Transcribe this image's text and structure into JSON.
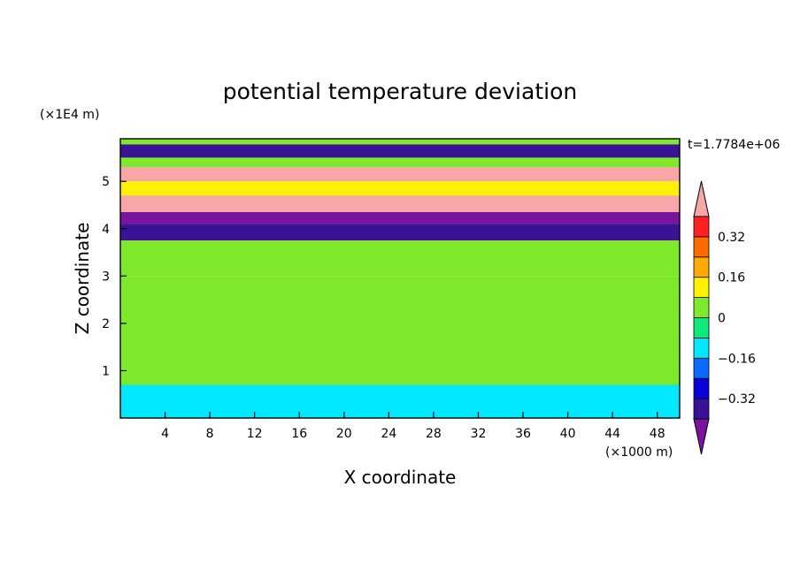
{
  "chart_data": {
    "type": "heatmap",
    "title": "potential temperature deviation",
    "time_label": "t=1.7784e+06",
    "xlabel": "X coordinate",
    "ylabel": "Z coordinate",
    "x_unit": "(×1000 m)",
    "y_unit": "(×1E4 m)",
    "xlim": [
      0,
      50
    ],
    "ylim": [
      0,
      5.9
    ],
    "x_ticks": [
      4,
      8,
      12,
      16,
      20,
      24,
      28,
      32,
      36,
      40,
      44,
      48
    ],
    "y_ticks": [
      1,
      2,
      3,
      4,
      5
    ],
    "colorbar": {
      "levels": [
        -0.4,
        -0.32,
        -0.24,
        -0.16,
        -0.08,
        0,
        0.08,
        0.16,
        0.24,
        0.32,
        0.4
      ],
      "labels": [
        "0.32",
        "0.16",
        "0",
        "−0.16",
        "−0.32"
      ],
      "label_values": [
        0.32,
        0.16,
        0,
        -0.16,
        -0.32
      ],
      "colors": [
        "#7a14a0",
        "#3a1296",
        "#0a00d8",
        "#0a6aff",
        "#00e8ff",
        "#11e87a",
        "#7ee82a",
        "#fff200",
        "#ffaa00",
        "#ff6b00",
        "#ff2020",
        "#f7a7a7"
      ]
    },
    "bands": [
      {
        "z": [
          5.78,
          5.9
        ],
        "value": 0.0
      },
      {
        "z": [
          5.5,
          5.78
        ],
        "value": -0.4
      },
      {
        "z": [
          5.3,
          5.5
        ],
        "value": 0.05
      },
      {
        "z": [
          5.0,
          5.3
        ],
        "value": 0.45
      },
      {
        "z": [
          4.7,
          5.0
        ],
        "value": 0.08
      },
      {
        "z": [
          4.35,
          4.7
        ],
        "value": 0.45
      },
      {
        "z": [
          4.1,
          4.35
        ],
        "value": -0.45
      },
      {
        "z": [
          3.75,
          4.1
        ],
        "value": -0.4
      },
      {
        "z": [
          3.0,
          3.75
        ],
        "value": 0.0
      },
      {
        "z": [
          0.7,
          3.0
        ],
        "value": 0.05
      },
      {
        "z": [
          0.0,
          0.7
        ],
        "value": -0.1
      }
    ]
  }
}
